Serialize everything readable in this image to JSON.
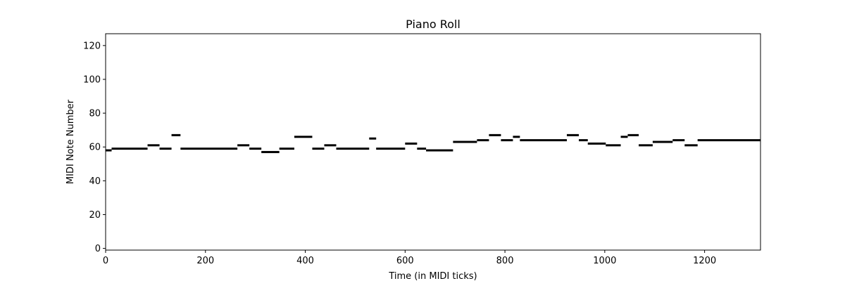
{
  "chart_data": {
    "type": "piano-roll",
    "title": "Piano Roll",
    "xlabel": "Time (in MIDI ticks)",
    "ylabel": "MIDI Note Number",
    "xlim": [
      0,
      1312
    ],
    "ylim": [
      -1,
      127
    ],
    "xticks": [
      0,
      200,
      400,
      600,
      800,
      1000,
      1200
    ],
    "yticks": [
      0,
      20,
      40,
      60,
      80,
      100,
      120
    ],
    "grid": false,
    "note_color": "#000000",
    "notes": [
      {
        "start": 0,
        "end": 12,
        "pitch": 58
      },
      {
        "start": 12,
        "end": 84,
        "pitch": 59
      },
      {
        "start": 84,
        "end": 108,
        "pitch": 61
      },
      {
        "start": 108,
        "end": 132,
        "pitch": 59
      },
      {
        "start": 132,
        "end": 150,
        "pitch": 67
      },
      {
        "start": 150,
        "end": 264,
        "pitch": 59
      },
      {
        "start": 264,
        "end": 288,
        "pitch": 61
      },
      {
        "start": 288,
        "end": 312,
        "pitch": 59
      },
      {
        "start": 312,
        "end": 348,
        "pitch": 57
      },
      {
        "start": 348,
        "end": 378,
        "pitch": 59
      },
      {
        "start": 378,
        "end": 414,
        "pitch": 66
      },
      {
        "start": 414,
        "end": 438,
        "pitch": 59
      },
      {
        "start": 438,
        "end": 462,
        "pitch": 61
      },
      {
        "start": 462,
        "end": 528,
        "pitch": 59
      },
      {
        "start": 528,
        "end": 542,
        "pitch": 65
      },
      {
        "start": 542,
        "end": 600,
        "pitch": 59
      },
      {
        "start": 600,
        "end": 624,
        "pitch": 62
      },
      {
        "start": 624,
        "end": 642,
        "pitch": 59
      },
      {
        "start": 642,
        "end": 696,
        "pitch": 58
      },
      {
        "start": 696,
        "end": 744,
        "pitch": 63
      },
      {
        "start": 744,
        "end": 768,
        "pitch": 64
      },
      {
        "start": 768,
        "end": 792,
        "pitch": 67
      },
      {
        "start": 792,
        "end": 816,
        "pitch": 64
      },
      {
        "start": 816,
        "end": 830,
        "pitch": 66
      },
      {
        "start": 830,
        "end": 924,
        "pitch": 64
      },
      {
        "start": 924,
        "end": 948,
        "pitch": 67
      },
      {
        "start": 948,
        "end": 966,
        "pitch": 64
      },
      {
        "start": 966,
        "end": 1002,
        "pitch": 62
      },
      {
        "start": 1002,
        "end": 1032,
        "pitch": 61
      },
      {
        "start": 1032,
        "end": 1046,
        "pitch": 66
      },
      {
        "start": 1046,
        "end": 1068,
        "pitch": 67
      },
      {
        "start": 1068,
        "end": 1096,
        "pitch": 61
      },
      {
        "start": 1096,
        "end": 1136,
        "pitch": 63
      },
      {
        "start": 1136,
        "end": 1160,
        "pitch": 64
      },
      {
        "start": 1160,
        "end": 1186,
        "pitch": 61
      },
      {
        "start": 1186,
        "end": 1312,
        "pitch": 64
      }
    ]
  }
}
